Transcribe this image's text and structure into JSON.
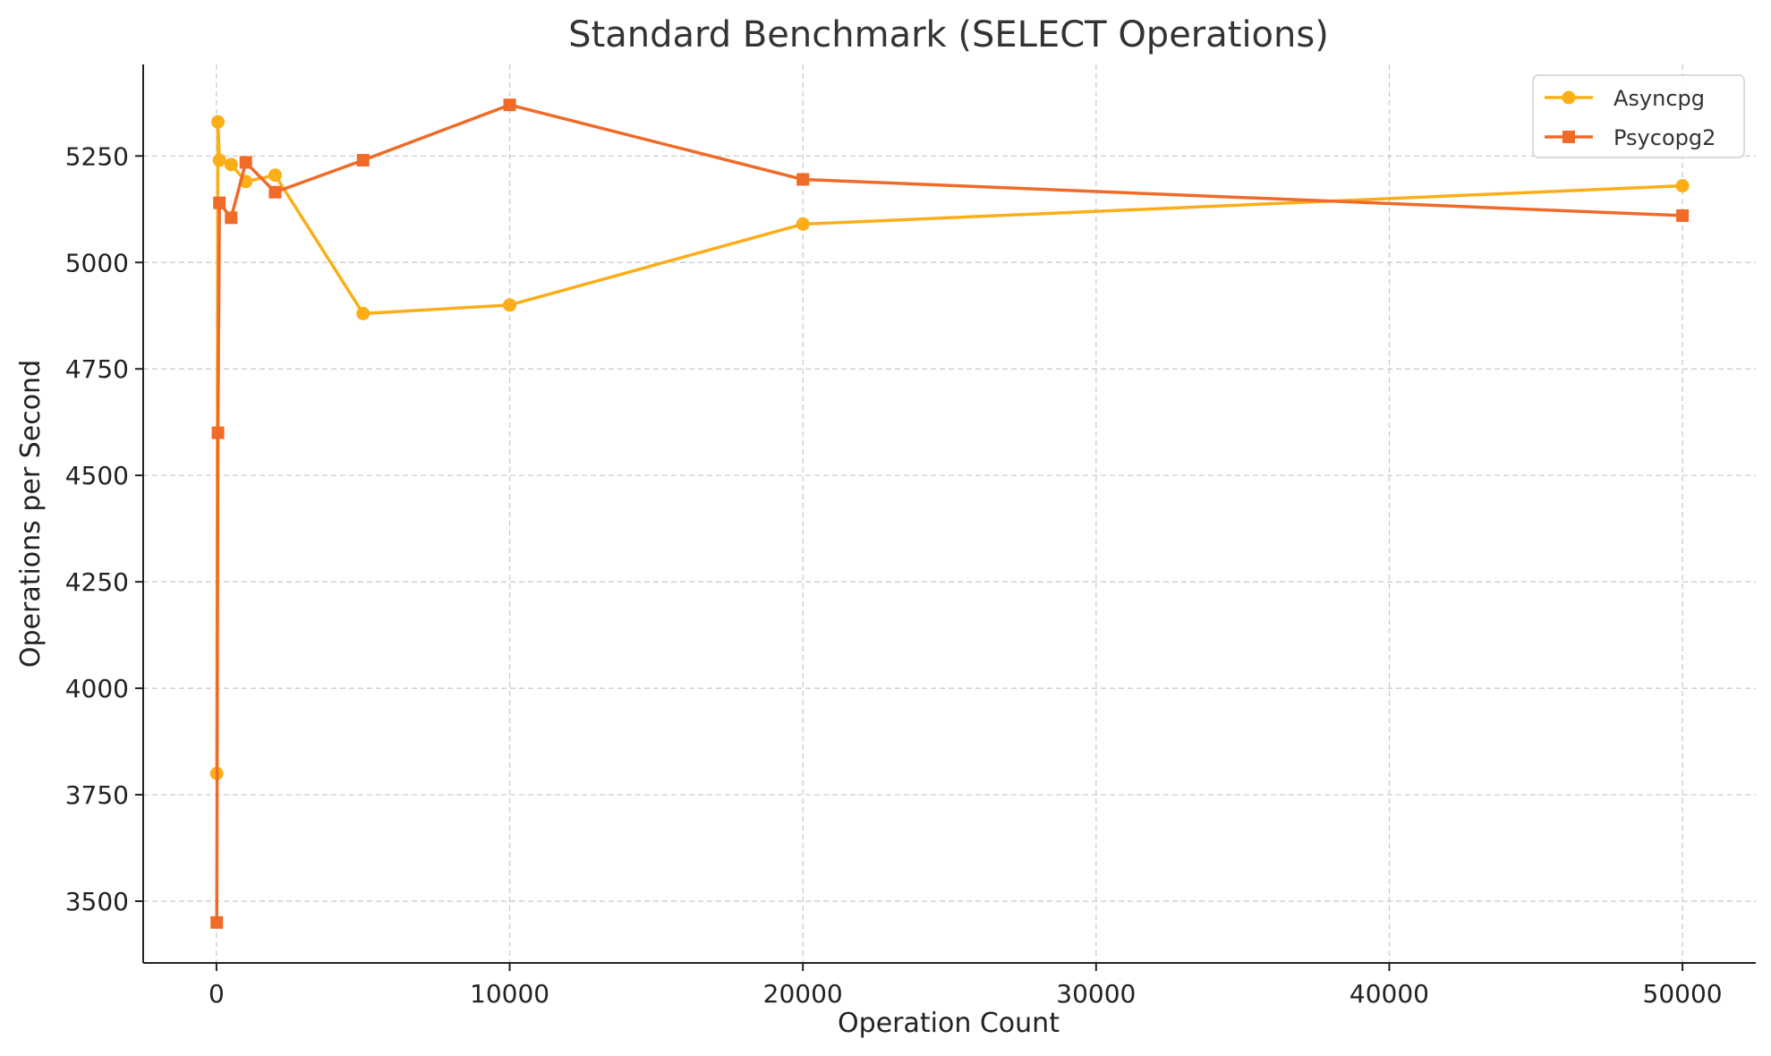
{
  "chart_data": {
    "type": "line",
    "title": "Standard Benchmark (SELECT Operations)",
    "xlabel": "Operation Count",
    "ylabel": "Operations per Second",
    "xlim": [
      -2500,
      52500
    ],
    "ylim": [
      3355,
      5465
    ],
    "xticks": [
      0,
      10000,
      20000,
      30000,
      40000,
      50000
    ],
    "yticks": [
      3500,
      3750,
      4000,
      4250,
      4500,
      4750,
      5000,
      5250
    ],
    "grid": true,
    "legend_position": "top-right",
    "series": [
      {
        "name": "Asyncpg",
        "color": "#FBAE17",
        "marker": "circle",
        "x": [
          10,
          50,
          100,
          500,
          1000,
          2000,
          5000,
          10000,
          20000,
          50000
        ],
        "y": [
          3800,
          5330,
          5240,
          5230,
          5190,
          5205,
          4880,
          4900,
          5090,
          5180
        ]
      },
      {
        "name": "Psycopg2",
        "color": "#F06A28",
        "marker": "square",
        "x": [
          10,
          50,
          100,
          500,
          1000,
          2000,
          5000,
          10000,
          20000,
          50000
        ],
        "y": [
          3450,
          4600,
          5140,
          5105,
          5235,
          5165,
          5240,
          5370,
          5195,
          5110
        ]
      }
    ]
  }
}
